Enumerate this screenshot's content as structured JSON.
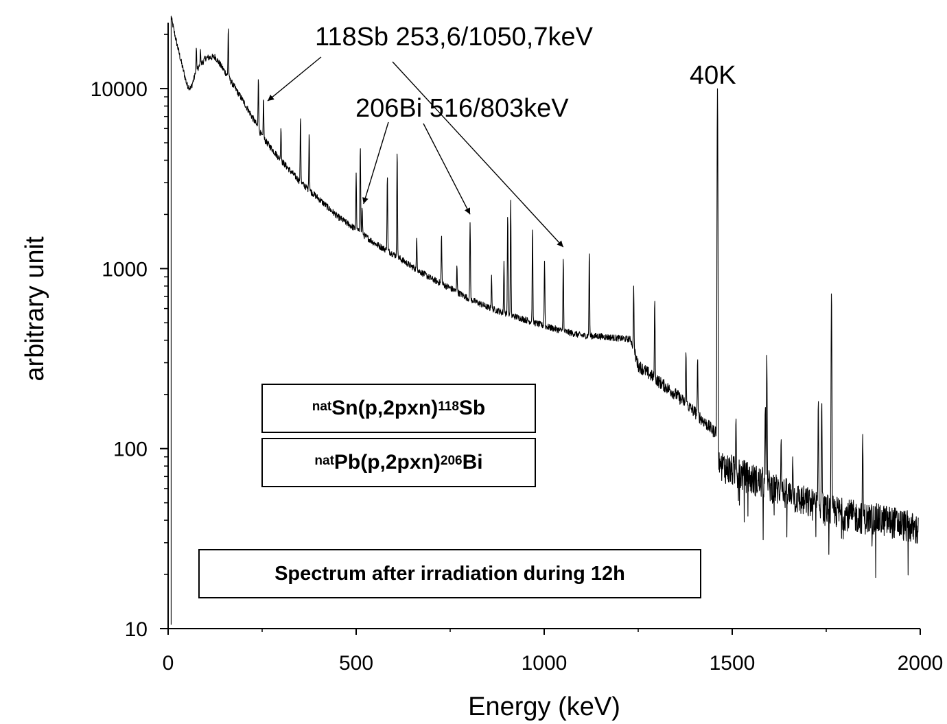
{
  "chart_data": {
    "type": "line",
    "title": "",
    "xlabel": "Energy (keV)",
    "ylabel": "arbitrary unit",
    "xlim": [
      0,
      2000
    ],
    "ylim": [
      10,
      25000
    ],
    "y_scale": "log",
    "x_ticks": [
      0,
      500,
      1000,
      1500,
      2000
    ],
    "x_tick_labels": [
      "0",
      "500",
      "1000",
      "1500",
      "2000"
    ],
    "y_ticks": [
      10,
      100,
      1000,
      10000
    ],
    "y_tick_labels": [
      "10",
      "100",
      "1000",
      "10000"
    ],
    "grid": false,
    "legend": "none",
    "line_color": "#000000",
    "series": [
      {
        "continuum": [
          [
            8,
            25000
          ],
          [
            20,
            19000
          ],
          [
            35,
            14000
          ],
          [
            50,
            10500
          ],
          [
            60,
            10000
          ],
          [
            75,
            12500
          ],
          [
            100,
            14800
          ],
          [
            125,
            15000
          ],
          [
            150,
            12500
          ],
          [
            200,
            8500
          ],
          [
            235,
            6300
          ],
          [
            250,
            5400
          ],
          [
            300,
            4000
          ],
          [
            350,
            3050
          ],
          [
            400,
            2450
          ],
          [
            450,
            1950
          ],
          [
            500,
            1650
          ],
          [
            550,
            1380
          ],
          [
            600,
            1200
          ],
          [
            650,
            1020
          ],
          [
            700,
            880
          ],
          [
            750,
            780
          ],
          [
            800,
            680
          ],
          [
            850,
            610
          ],
          [
            900,
            560
          ],
          [
            950,
            520
          ],
          [
            1000,
            480
          ],
          [
            1050,
            450
          ],
          [
            1100,
            425
          ],
          [
            1150,
            420
          ],
          [
            1200,
            410
          ],
          [
            1230,
            405
          ],
          [
            1240,
            340
          ],
          [
            1250,
            290
          ],
          [
            1300,
            240
          ],
          [
            1350,
            200
          ],
          [
            1400,
            160
          ],
          [
            1450,
            125
          ],
          [
            1462,
            125
          ],
          [
            1464,
            82
          ],
          [
            1500,
            75
          ],
          [
            1550,
            68
          ],
          [
            1600,
            62
          ],
          [
            1650,
            55
          ],
          [
            1700,
            50
          ],
          [
            1750,
            46
          ],
          [
            1800,
            43
          ],
          [
            1850,
            41
          ],
          [
            1900,
            40
          ],
          [
            1950,
            38
          ],
          [
            1995,
            35
          ]
        ],
        "peaks": [
          [
            75,
            17000
          ],
          [
            86,
            16500
          ],
          [
            160,
            22000
          ],
          [
            240,
            11500
          ],
          [
            253.6,
            9000
          ],
          [
            300,
            6100
          ],
          [
            352,
            7000
          ],
          [
            375,
            5700
          ],
          [
            500,
            3400
          ],
          [
            511,
            4800
          ],
          [
            516,
            2200
          ],
          [
            583,
            3300
          ],
          [
            609,
            4500
          ],
          [
            661,
            1500
          ],
          [
            727,
            1550
          ],
          [
            768,
            1050
          ],
          [
            803,
            1800
          ],
          [
            860,
            920
          ],
          [
            893,
            1100
          ],
          [
            903,
            2000
          ],
          [
            911,
            2400
          ],
          [
            969,
            1700
          ],
          [
            1001,
            1100
          ],
          [
            1050.7,
            1150
          ],
          [
            1120,
            1250
          ],
          [
            1238,
            800
          ],
          [
            1294,
            680
          ],
          [
            1377,
            350
          ],
          [
            1408,
            320
          ],
          [
            1460.8,
            10000
          ],
          [
            1510,
            150
          ],
          [
            1588,
            175
          ],
          [
            1592,
            330
          ],
          [
            1630,
            115
          ],
          [
            1661,
            90
          ],
          [
            1729,
            190
          ],
          [
            1738,
            185
          ],
          [
            1764,
            760
          ],
          [
            1847,
            120
          ]
        ],
        "noise_from_keV": 1465
      }
    ],
    "annotations": [
      {
        "text": "118Sb 253,6/1050,7keV",
        "arrow_targets": [
          [
            253.6,
            9000
          ],
          [
            1050.7,
            1250
          ]
        ]
      },
      {
        "text": "206Bi 516/803keV",
        "arrow_targets": [
          [
            516,
            2250
          ],
          [
            803,
            1900
          ]
        ]
      },
      {
        "text": "40K"
      }
    ]
  },
  "boxes": {
    "sn_reaction": {
      "prefix": "nat",
      "mid1": "Sn(p,2pxn)",
      "mass": "118",
      "element": "Sb"
    },
    "pb_reaction": {
      "prefix": "nat",
      "mid1": "Pb(p,2pxn)",
      "mass": "206",
      "element": "Bi"
    },
    "caption": "Spectrum after irradiation during 12h"
  }
}
